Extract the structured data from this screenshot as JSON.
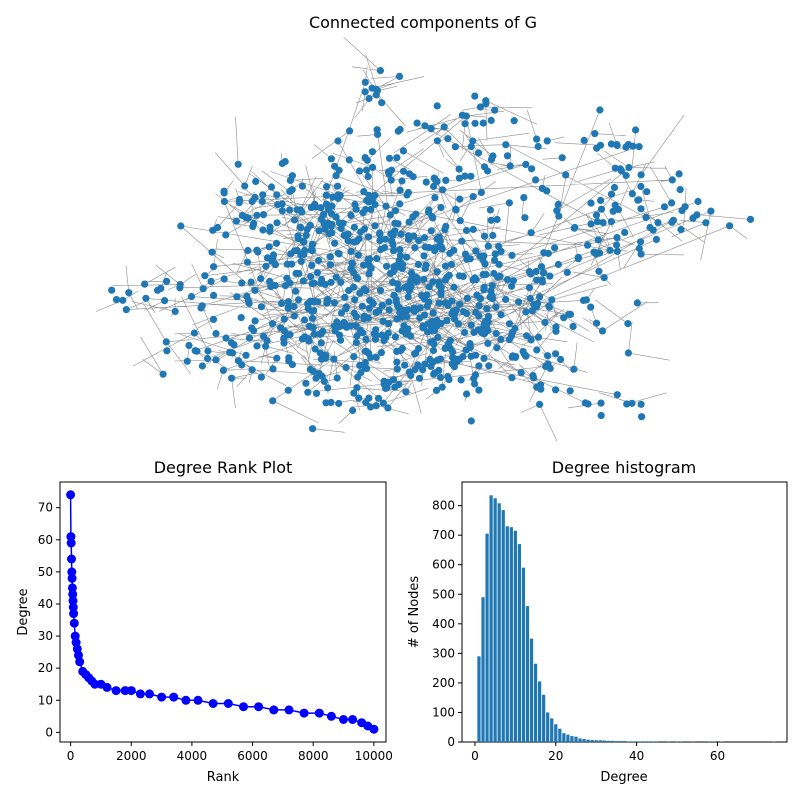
{
  "figure": {
    "colors": {
      "node": "#1f77b4",
      "edge": "#000000",
      "rank": "#0000ff",
      "bar": "#1f77b4"
    }
  },
  "chart_data": [
    {
      "type": "network",
      "title": "Connected components of G",
      "node_count_approx": 10000,
      "note_clusters": [
        {
          "cx": 0.0,
          "cy": 0.0
        }
      ]
    },
    {
      "type": "line",
      "title": "Degree Rank Plot",
      "xlabel": "Rank",
      "ylabel": "Degree",
      "xlim": [
        -350,
        10400
      ],
      "ylim": [
        -3,
        78
      ],
      "xticks": [
        0,
        2000,
        4000,
        6000,
        8000,
        10000
      ],
      "yticks": [
        0,
        10,
        20,
        30,
        40,
        50,
        60,
        70
      ],
      "x": [
        0,
        10,
        20,
        30,
        40,
        50,
        60,
        70,
        80,
        90,
        100,
        120,
        150,
        180,
        220,
        260,
        300,
        400,
        500,
        600,
        700,
        800,
        1000,
        1200,
        1500,
        1800,
        2000,
        2300,
        2600,
        3000,
        3400,
        3800,
        4200,
        4700,
        5200,
        5700,
        6200,
        6700,
        7200,
        7700,
        8200,
        8600,
        9000,
        9300,
        9600,
        9800,
        10000
      ],
      "values": [
        74,
        61,
        59,
        54,
        50,
        48,
        45,
        43,
        41,
        39,
        37,
        34,
        30,
        28,
        26,
        24,
        22,
        19,
        18,
        17,
        16,
        15,
        15,
        14,
        13,
        13,
        13,
        12,
        12,
        11,
        11,
        10,
        10,
        9,
        9,
        8,
        8,
        7,
        7,
        6,
        6,
        5,
        4,
        4,
        3,
        2,
        1
      ]
    },
    {
      "type": "bar",
      "title": "Degree histogram",
      "xlabel": "Degree",
      "ylabel": "# of Nodes",
      "xlim": [
        -3.2,
        77.2
      ],
      "ylim": [
        0,
        880
      ],
      "xticks": [
        0,
        20,
        40,
        60
      ],
      "yticks": [
        0,
        100,
        200,
        300,
        400,
        500,
        600,
        700,
        800
      ],
      "categories": [
        1,
        2,
        3,
        4,
        5,
        6,
        7,
        8,
        9,
        10,
        11,
        12,
        13,
        14,
        15,
        16,
        17,
        18,
        19,
        20,
        21,
        22,
        23,
        24,
        25,
        26,
        27,
        28,
        29,
        30,
        31,
        32,
        33,
        34,
        35,
        36,
        37,
        38,
        39,
        40,
        41,
        42,
        43,
        44,
        45,
        48,
        50,
        51,
        54,
        58,
        59,
        61,
        74
      ],
      "values": [
        290,
        490,
        705,
        835,
        825,
        808,
        785,
        730,
        727,
        715,
        670,
        590,
        460,
        350,
        265,
        205,
        160,
        100,
        80,
        60,
        45,
        30,
        25,
        20,
        18,
        12,
        10,
        8,
        7,
        6,
        6,
        5,
        4,
        4,
        3,
        3,
        3,
        2,
        2,
        2,
        2,
        1,
        1,
        2,
        1,
        2,
        1,
        1,
        1,
        1,
        1,
        1,
        1
      ]
    }
  ]
}
